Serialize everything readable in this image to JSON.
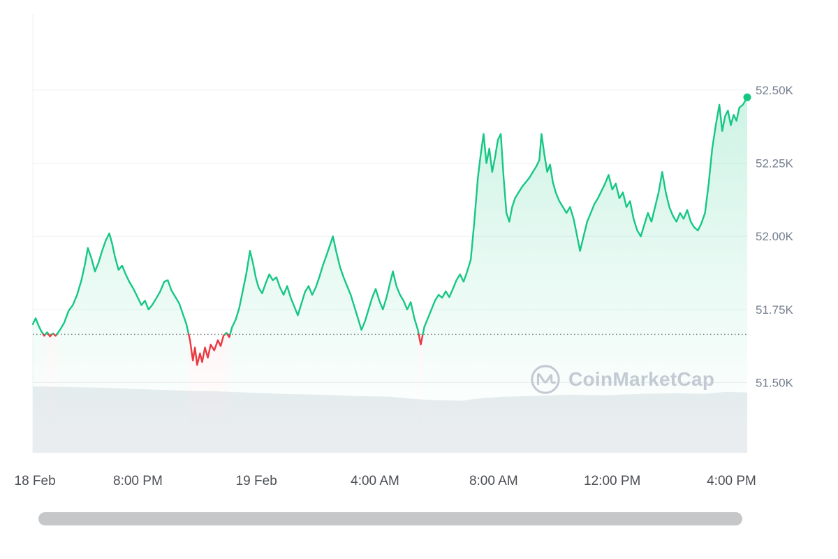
{
  "watermark": {
    "label": "CoinMarketCap"
  },
  "chart_data": {
    "type": "line",
    "title": "",
    "xlabel": "",
    "ylabel": "",
    "ylim": [
      51.26,
      52.76
    ],
    "baseline": 51.665,
    "grid": true,
    "legend": "none",
    "yticks": [
      {
        "v": 52.5,
        "label": "52.50K"
      },
      {
        "v": 52.25,
        "label": "52.25K"
      },
      {
        "v": 52.0,
        "label": "52.00K"
      },
      {
        "v": 51.75,
        "label": "51.75K"
      },
      {
        "v": 51.5,
        "label": "51.50K"
      }
    ],
    "xticks": [
      {
        "pos": 0.003,
        "label": "18 Feb"
      },
      {
        "pos": 0.147,
        "label": "8:00 PM"
      },
      {
        "pos": 0.313,
        "label": "19 Feb"
      },
      {
        "pos": 0.479,
        "label": "4:00 AM"
      },
      {
        "pos": 0.645,
        "label": "8:00 AM"
      },
      {
        "pos": 0.811,
        "label": "12:00 PM"
      },
      {
        "pos": 0.978,
        "label": "4:00 PM"
      }
    ],
    "series": [
      {
        "name": "price",
        "points": [
          [
            0.0,
            51.7
          ],
          [
            0.004,
            51.72
          ],
          [
            0.008,
            51.695
          ],
          [
            0.012,
            51.675
          ],
          [
            0.016,
            51.66
          ],
          [
            0.02,
            51.672
          ],
          [
            0.024,
            51.658
          ],
          [
            0.028,
            51.668
          ],
          [
            0.032,
            51.66
          ],
          [
            0.038,
            51.68
          ],
          [
            0.044,
            51.705
          ],
          [
            0.05,
            51.745
          ],
          [
            0.056,
            51.765
          ],
          [
            0.062,
            51.8
          ],
          [
            0.068,
            51.85
          ],
          [
            0.073,
            51.905
          ],
          [
            0.077,
            51.96
          ],
          [
            0.082,
            51.925
          ],
          [
            0.087,
            51.88
          ],
          [
            0.092,
            51.91
          ],
          [
            0.097,
            51.95
          ],
          [
            0.102,
            51.985
          ],
          [
            0.107,
            52.01
          ],
          [
            0.111,
            51.975
          ],
          [
            0.115,
            51.93
          ],
          [
            0.12,
            51.885
          ],
          [
            0.125,
            51.9
          ],
          [
            0.13,
            51.87
          ],
          [
            0.135,
            51.845
          ],
          [
            0.141,
            51.82
          ],
          [
            0.147,
            51.79
          ],
          [
            0.152,
            51.765
          ],
          [
            0.157,
            51.78
          ],
          [
            0.162,
            51.75
          ],
          [
            0.167,
            51.765
          ],
          [
            0.172,
            51.785
          ],
          [
            0.178,
            51.81
          ],
          [
            0.184,
            51.845
          ],
          [
            0.189,
            51.85
          ],
          [
            0.194,
            51.815
          ],
          [
            0.199,
            51.795
          ],
          [
            0.205,
            51.77
          ],
          [
            0.21,
            51.735
          ],
          [
            0.215,
            51.7
          ],
          [
            0.22,
            51.645
          ],
          [
            0.224,
            51.575
          ],
          [
            0.227,
            51.62
          ],
          [
            0.23,
            51.56
          ],
          [
            0.234,
            51.6
          ],
          [
            0.237,
            51.57
          ],
          [
            0.241,
            51.62
          ],
          [
            0.245,
            51.585
          ],
          [
            0.249,
            51.63
          ],
          [
            0.254,
            51.61
          ],
          [
            0.259,
            51.645
          ],
          [
            0.263,
            51.625
          ],
          [
            0.267,
            51.66
          ],
          [
            0.271,
            51.67
          ],
          [
            0.275,
            51.655
          ],
          [
            0.279,
            51.69
          ],
          [
            0.284,
            51.715
          ],
          [
            0.289,
            51.755
          ],
          [
            0.294,
            51.815
          ],
          [
            0.299,
            51.875
          ],
          [
            0.304,
            51.95
          ],
          [
            0.308,
            51.91
          ],
          [
            0.312,
            51.86
          ],
          [
            0.316,
            51.825
          ],
          [
            0.321,
            51.805
          ],
          [
            0.326,
            51.84
          ],
          [
            0.331,
            51.87
          ],
          [
            0.336,
            51.85
          ],
          [
            0.341,
            51.86
          ],
          [
            0.346,
            51.825
          ],
          [
            0.351,
            51.8
          ],
          [
            0.356,
            51.83
          ],
          [
            0.361,
            51.79
          ],
          [
            0.366,
            51.76
          ],
          [
            0.371,
            51.73
          ],
          [
            0.376,
            51.77
          ],
          [
            0.381,
            51.81
          ],
          [
            0.386,
            51.83
          ],
          [
            0.391,
            51.8
          ],
          [
            0.396,
            51.825
          ],
          [
            0.401,
            51.86
          ],
          [
            0.406,
            51.9
          ],
          [
            0.411,
            51.935
          ],
          [
            0.416,
            51.97
          ],
          [
            0.42,
            52.0
          ],
          [
            0.425,
            51.945
          ],
          [
            0.43,
            51.895
          ],
          [
            0.435,
            51.86
          ],
          [
            0.44,
            51.83
          ],
          [
            0.445,
            51.8
          ],
          [
            0.45,
            51.76
          ],
          [
            0.455,
            51.72
          ],
          [
            0.46,
            51.68
          ],
          [
            0.465,
            51.71
          ],
          [
            0.47,
            51.75
          ],
          [
            0.475,
            51.79
          ],
          [
            0.48,
            51.82
          ],
          [
            0.485,
            51.78
          ],
          [
            0.49,
            51.75
          ],
          [
            0.495,
            51.79
          ],
          [
            0.5,
            51.84
          ],
          [
            0.504,
            51.88
          ],
          [
            0.509,
            51.83
          ],
          [
            0.514,
            51.8
          ],
          [
            0.519,
            51.78
          ],
          [
            0.524,
            51.75
          ],
          [
            0.529,
            51.775
          ],
          [
            0.534,
            51.72
          ],
          [
            0.539,
            51.68
          ],
          [
            0.543,
            51.63
          ],
          [
            0.548,
            51.69
          ],
          [
            0.553,
            51.72
          ],
          [
            0.558,
            51.75
          ],
          [
            0.563,
            51.78
          ],
          [
            0.568,
            51.8
          ],
          [
            0.573,
            51.79
          ],
          [
            0.578,
            51.812
          ],
          [
            0.583,
            51.792
          ],
          [
            0.588,
            51.82
          ],
          [
            0.593,
            51.85
          ],
          [
            0.598,
            51.87
          ],
          [
            0.603,
            51.845
          ],
          [
            0.608,
            51.88
          ],
          [
            0.613,
            51.92
          ],
          [
            0.618,
            52.05
          ],
          [
            0.623,
            52.2
          ],
          [
            0.627,
            52.28
          ],
          [
            0.631,
            52.35
          ],
          [
            0.635,
            52.25
          ],
          [
            0.639,
            52.3
          ],
          [
            0.643,
            52.22
          ],
          [
            0.647,
            52.27
          ],
          [
            0.651,
            52.33
          ],
          [
            0.655,
            52.35
          ],
          [
            0.659,
            52.2
          ],
          [
            0.663,
            52.08
          ],
          [
            0.667,
            52.05
          ],
          [
            0.671,
            52.1
          ],
          [
            0.675,
            52.13
          ],
          [
            0.68,
            52.15
          ],
          [
            0.685,
            52.17
          ],
          [
            0.69,
            52.185
          ],
          [
            0.695,
            52.2
          ],
          [
            0.7,
            52.22
          ],
          [
            0.705,
            52.24
          ],
          [
            0.709,
            52.26
          ],
          [
            0.712,
            52.35
          ],
          [
            0.716,
            52.28
          ],
          [
            0.72,
            52.22
          ],
          [
            0.724,
            52.245
          ],
          [
            0.728,
            52.185
          ],
          [
            0.732,
            52.15
          ],
          [
            0.737,
            52.12
          ],
          [
            0.742,
            52.1
          ],
          [
            0.747,
            52.08
          ],
          [
            0.752,
            52.1
          ],
          [
            0.757,
            52.06
          ],
          [
            0.762,
            52.0
          ],
          [
            0.766,
            51.95
          ],
          [
            0.771,
            52.0
          ],
          [
            0.776,
            52.05
          ],
          [
            0.781,
            52.08
          ],
          [
            0.786,
            52.11
          ],
          [
            0.791,
            52.13
          ],
          [
            0.796,
            52.155
          ],
          [
            0.801,
            52.18
          ],
          [
            0.806,
            52.21
          ],
          [
            0.811,
            52.16
          ],
          [
            0.816,
            52.18
          ],
          [
            0.821,
            52.13
          ],
          [
            0.826,
            52.15
          ],
          [
            0.831,
            52.1
          ],
          [
            0.836,
            52.12
          ],
          [
            0.841,
            52.06
          ],
          [
            0.846,
            52.02
          ],
          [
            0.851,
            52.0
          ],
          [
            0.856,
            52.04
          ],
          [
            0.861,
            52.08
          ],
          [
            0.866,
            52.05
          ],
          [
            0.871,
            52.1
          ],
          [
            0.876,
            52.15
          ],
          [
            0.881,
            52.22
          ],
          [
            0.886,
            52.15
          ],
          [
            0.891,
            52.1
          ],
          [
            0.896,
            52.07
          ],
          [
            0.901,
            52.05
          ],
          [
            0.906,
            52.08
          ],
          [
            0.911,
            52.06
          ],
          [
            0.916,
            52.09
          ],
          [
            0.921,
            52.05
          ],
          [
            0.926,
            52.03
          ],
          [
            0.931,
            52.02
          ],
          [
            0.936,
            52.045
          ],
          [
            0.941,
            52.08
          ],
          [
            0.946,
            52.18
          ],
          [
            0.951,
            52.3
          ],
          [
            0.956,
            52.38
          ],
          [
            0.961,
            52.45
          ],
          [
            0.965,
            52.36
          ],
          [
            0.969,
            52.41
          ],
          [
            0.973,
            52.43
          ],
          [
            0.977,
            52.38
          ],
          [
            0.981,
            52.415
          ],
          [
            0.985,
            52.395
          ],
          [
            0.989,
            52.44
          ],
          [
            0.994,
            52.45
          ],
          [
            1.0,
            52.475
          ]
        ]
      }
    ],
    "volume_profile": [
      [
        0.0,
        0.97
      ],
      [
        0.05,
        0.96
      ],
      [
        0.1,
        0.95
      ],
      [
        0.15,
        0.93
      ],
      [
        0.2,
        0.91
      ],
      [
        0.25,
        0.9
      ],
      [
        0.3,
        0.88
      ],
      [
        0.35,
        0.86
      ],
      [
        0.4,
        0.85
      ],
      [
        0.45,
        0.83
      ],
      [
        0.5,
        0.82
      ],
      [
        0.53,
        0.79
      ],
      [
        0.56,
        0.77
      ],
      [
        0.6,
        0.76
      ],
      [
        0.63,
        0.8
      ],
      [
        0.66,
        0.82
      ],
      [
        0.7,
        0.83
      ],
      [
        0.75,
        0.85
      ],
      [
        0.8,
        0.84
      ],
      [
        0.85,
        0.86
      ],
      [
        0.9,
        0.87
      ],
      [
        0.94,
        0.86
      ],
      [
        0.97,
        0.89
      ],
      [
        1.0,
        0.88
      ]
    ],
    "colors": {
      "up": "#16c784",
      "down": "#ea3943",
      "grid": "#eef0f3",
      "baseline": "#6b6b6b",
      "axis_text_y": "#747e8e",
      "axis_text_x": "#4c4f55",
      "volume": "#e9edf0",
      "watermark": "#c3cad3",
      "scrollbar": "#c5c7c9"
    }
  }
}
